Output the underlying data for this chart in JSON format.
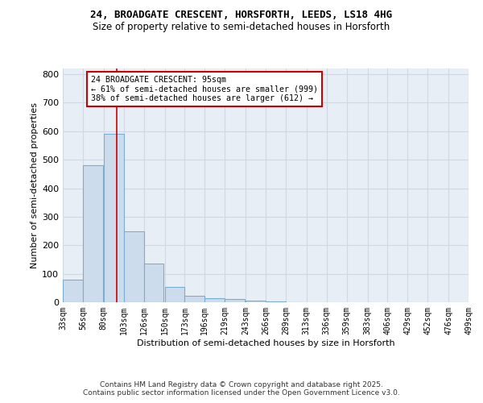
{
  "title1": "24, BROADGATE CRESCENT, HORSFORTH, LEEDS, LS18 4HG",
  "title2": "Size of property relative to semi-detached houses in Horsforth",
  "xlabel": "Distribution of semi-detached houses by size in Horsforth",
  "ylabel": "Number of semi-detached properties",
  "bin_edges": [
    33,
    56,
    80,
    103,
    126,
    150,
    173,
    196,
    219,
    243,
    266,
    289,
    313,
    336,
    359,
    383,
    406,
    429,
    452,
    476,
    499
  ],
  "bar_heights": [
    78,
    480,
    590,
    250,
    135,
    55,
    22,
    15,
    10,
    6,
    2,
    1,
    0,
    0,
    0,
    0,
    0,
    0,
    0,
    0
  ],
  "bar_color": "#ccdcec",
  "bar_edge_color": "#7aadd0",
  "property_size": 95,
  "vline_color": "#cc0000",
  "annotation_title": "24 BROADGATE CRESCENT: 95sqm",
  "annotation_line2": "← 61% of semi-detached houses are smaller (999)",
  "annotation_line3": "38% of semi-detached houses are larger (612) →",
  "annotation_box_color": "#cc0000",
  "ylim": [
    0,
    820
  ],
  "yticks": [
    0,
    100,
    200,
    300,
    400,
    500,
    600,
    700,
    800
  ],
  "grid_color": "#d0d8e4",
  "background_color": "#e8eef6",
  "footer_line1": "Contains HM Land Registry data © Crown copyright and database right 2025.",
  "footer_line2": "Contains public sector information licensed under the Open Government Licence v3.0."
}
